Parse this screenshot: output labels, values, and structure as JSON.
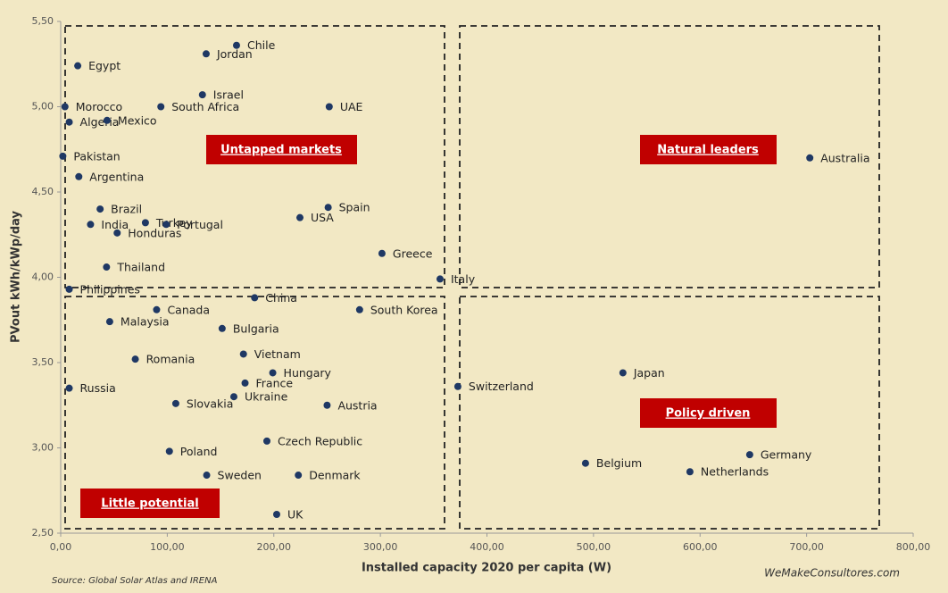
{
  "chart_data": {
    "type": "scatter",
    "x_label": "Installed capacity 2020 per capita (W)",
    "y_label": "PVout kWh/kWp/day",
    "source": "Source:  Global Solar Atlas and IRENA",
    "watermark": "WeMakeConsultores.com",
    "annotations": [
      "Untapped markets",
      "Natural leaders",
      "Policy driven",
      "Little potential"
    ],
    "color": "#1f3864",
    "xlim": [
      0,
      800
    ],
    "ylim": [
      2.5,
      5.5
    ],
    "xticks": [
      {
        "value": 0,
        "label": "0,00"
      },
      {
        "value": 100,
        "label": "100,00"
      },
      {
        "value": 200,
        "label": "200,00"
      },
      {
        "value": 300,
        "label": "300,00"
      },
      {
        "value": 400,
        "label": "400,00"
      },
      {
        "value": 500,
        "label": "500,00"
      },
      {
        "value": 600,
        "label": "600,00"
      },
      {
        "value": 700,
        "label": "700,00"
      },
      {
        "value": 800,
        "label": "800,00"
      }
    ],
    "yticks": [
      {
        "value": 2.5,
        "label": "2,50"
      },
      {
        "value": 3,
        "label": "3,00"
      },
      {
        "value": 3.5,
        "label": "3,50"
      },
      {
        "value": 4,
        "label": "4,00"
      },
      {
        "value": 4.5,
        "label": "4,50"
      },
      {
        "value": 5,
        "label": "5,00"
      },
      {
        "value": 5.5,
        "label": "5,50"
      }
    ],
    "labels": [
      "Chile",
      "Jordan",
      "Egypt",
      "Israel",
      "Morocco",
      "South Africa",
      "UAE",
      "Algeria",
      "Mexico",
      "Pakistan",
      "Australia",
      "Argentina",
      "Spain",
      "Brazil",
      "USA",
      "India",
      "Turkey",
      "Portugal",
      "Honduras",
      "Greece",
      "Thailand",
      "Italy",
      "Philippines",
      "China",
      "Canada",
      "South Korea",
      "Malaysia",
      "Bulgaria",
      "Vietnam",
      "Romania",
      "Japan",
      "Hungary",
      "France",
      "Russia",
      "Switzerland",
      "Ukraine",
      "Slovakia",
      "Austria",
      "Czech Republic",
      "Poland",
      "Germany",
      "Belgium",
      "Netherlands",
      "Sweden",
      "Denmark",
      "UK"
    ],
    "x": [
      165,
      136.5,
      16,
      133,
      4,
      94,
      252,
      8,
      43.5,
      2,
      703,
      17,
      251,
      37,
      224.5,
      28,
      79.5,
      99,
      53,
      301.5,
      43,
      356,
      8,
      182,
      90,
      280.5,
      46,
      151.5,
      171.5,
      70,
      527.6,
      199,
      173,
      8,
      372.7,
      162.5,
      108,
      250,
      193.5,
      102,
      646.6,
      492.5,
      590.5,
      137,
      223,
      202.7
    ],
    "values": [
      5.36,
      5.31,
      5.24,
      5.07,
      5.0,
      5.0,
      5.0,
      4.91,
      4.92,
      4.71,
      4.7,
      4.59,
      4.41,
      4.4,
      4.35,
      4.31,
      4.32,
      4.31,
      4.26,
      4.14,
      4.06,
      3.99,
      3.93,
      3.88,
      3.81,
      3.81,
      3.74,
      3.7,
      3.55,
      3.52,
      3.44,
      3.44,
      3.38,
      3.35,
      3.36,
      3.3,
      3.26,
      3.25,
      3.04,
      2.98,
      2.96,
      2.91,
      2.86,
      2.84,
      2.84,
      2.61
    ]
  }
}
